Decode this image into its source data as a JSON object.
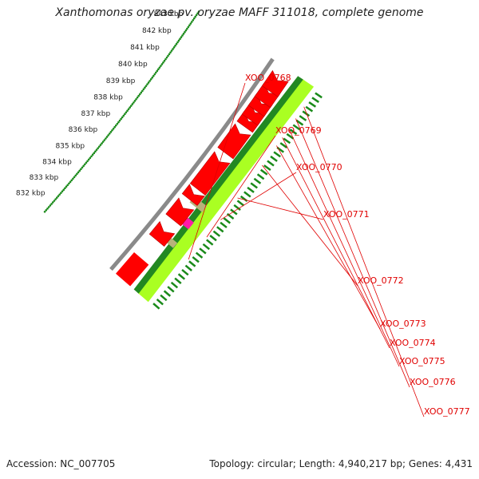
{
  "title": "Xanthomonas oryzae pv. oryzae MAFF 311018, complete genome",
  "footer": {
    "accession": "Accession: NC_007705",
    "summary": "Topology: circular; Length: 4,940,217 bp; Genes: 4,431"
  },
  "colors": {
    "cds": "#ff0000",
    "cds_dark": "#b80000",
    "backbone": "#8a8a8a",
    "ticks": "#1a8a1a",
    "gc_light": "#aaff22",
    "gc_dark": "#228822",
    "feature_tan": "#b8b27a",
    "feature_magenta": "#ff1aa8",
    "label": "#e00000"
  },
  "scale": {
    "unit": "kbp",
    "ticks": [
      {
        "kbp": 832,
        "label": "832 kbp"
      },
      {
        "kbp": 833,
        "label": "833 kbp"
      },
      {
        "kbp": 834,
        "label": "834 kbp"
      },
      {
        "kbp": 835,
        "label": "835 kbp"
      },
      {
        "kbp": 836,
        "label": "836 kbp"
      },
      {
        "kbp": 837,
        "label": "837 kbp"
      },
      {
        "kbp": 838,
        "label": "838 kbp"
      },
      {
        "kbp": 839,
        "label": "839 kbp"
      },
      {
        "kbp": 840,
        "label": "840 kbp"
      },
      {
        "kbp": 841,
        "label": "841 kbp"
      },
      {
        "kbp": 842,
        "label": "842 kbp"
      },
      {
        "kbp": 843,
        "label": "843 kbp"
      }
    ]
  },
  "genes": [
    {
      "label": "XOO_0768",
      "start_kbp": 833.7,
      "end_kbp": 834.2
    },
    {
      "label": "XOO_0769",
      "start_kbp": 834.9,
      "end_kbp": 835.6
    },
    {
      "label": "XOO_0770",
      "start_kbp": 836.1,
      "end_kbp": 836.4
    },
    {
      "label": "XOO_0771",
      "start_kbp": 836.7,
      "end_kbp": 838.3
    },
    {
      "label": "XOO_0772",
      "start_kbp": 838.8,
      "end_kbp": 839.9
    },
    {
      "label": "XOO_0773",
      "start_kbp": 840.3,
      "end_kbp": 840.6
    },
    {
      "label": "XOO_0774",
      "start_kbp": 840.7,
      "end_kbp": 841.1
    },
    {
      "label": "XOO_0775",
      "start_kbp": 841.2,
      "end_kbp": 841.6
    },
    {
      "label": "XOO_0776",
      "start_kbp": 841.7,
      "end_kbp": 842.2
    },
    {
      "label": "XOO_0777",
      "start_kbp": 842.3,
      "end_kbp": 842.9
    }
  ]
}
